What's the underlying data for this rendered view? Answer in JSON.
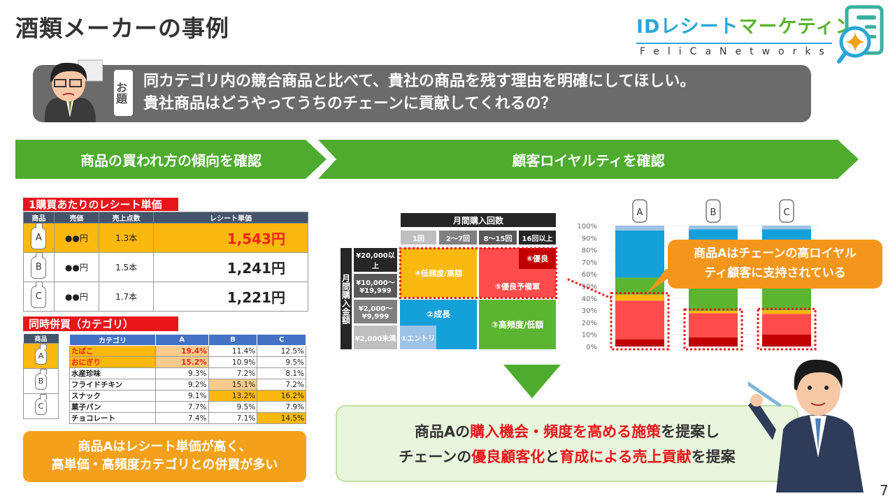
{
  "title": "酒類メーカーの事例",
  "logo": {
    "jp_blue": "IDレシート",
    "jp_green": "マーケティング",
    "en": "FeliCaNetworks"
  },
  "odai": {
    "label": "お題",
    "lines": [
      "同カテゴリ内の競合商品と比べて、貴社の商品を残す理由を明確にしてほしい。",
      "貴社商品はどうやってうちのチェーンに貢献してくれるの？"
    ]
  },
  "arrows": {
    "left": "商品の買われ方の傾向を確認",
    "right": "顧客ロイヤルティを確認"
  },
  "receipt": {
    "label": "1購買あたりのレシート単価",
    "headers": [
      "商品",
      "売価",
      "売上点数",
      "レシート単価"
    ],
    "rows": [
      {
        "product": "A",
        "price": "●●円",
        "units": "1.3本",
        "receipt": "1,543円"
      },
      {
        "product": "B",
        "price": "●●円",
        "units": "1.5本",
        "receipt": "1,241円"
      },
      {
        "product": "C",
        "price": "●●円",
        "units": "1.7本",
        "receipt": "1,221円"
      }
    ]
  },
  "basket": {
    "label": "同時併買（カテゴリ）",
    "product_header": "商品",
    "products": [
      "A",
      "B",
      "C"
    ],
    "headers": [
      "カテゴリ",
      "A",
      "B",
      "C"
    ],
    "rows": [
      [
        "たばこ",
        "19.4%",
        "11.4%",
        "12.5%"
      ],
      [
        "おにぎり",
        "15.2%",
        "10.9%",
        "9.5%"
      ],
      [
        "水産珍味",
        "9.3%",
        "7.2%",
        "8.1%"
      ],
      [
        "フライドチキン",
        "9.2%",
        "15.1%",
        "7.2%"
      ],
      [
        "スナック",
        "9.1%",
        "13.2%",
        "16.2%"
      ],
      [
        "菓子パン",
        "7.7%",
        "9.5%",
        "7.9%"
      ],
      [
        "チョコレート",
        "7.4%",
        "7.1%",
        "14.5%"
      ]
    ]
  },
  "summary_left": [
    "商品Aはレシート単価が高く、",
    "高単価・高頻度カテゴリとの併買が多い"
  ],
  "matrix": {
    "col_title": "月間購入回数",
    "cols": [
      "1回",
      "2〜7回",
      "8〜15回",
      "16回以上"
    ],
    "row_title": "月間購入金額",
    "rows": [
      "¥20,000以上",
      "¥10,000〜¥19,999",
      "¥2,000〜¥9,999",
      "¥2,000未満"
    ],
    "segments": {
      "s1": "①エントリ",
      "s2": "②成長",
      "s3": "③高頻度/低額",
      "s4": "④低頻度/高額",
      "s5": "⑤優良予備軍",
      "s6": "⑥優良"
    }
  },
  "chart_data": {
    "type": "bar",
    "stacked": true,
    "categories": [
      "A",
      "B",
      "C"
    ],
    "ylim": [
      0,
      100
    ],
    "yticks": [
      "0%",
      "10%",
      "20%",
      "30%",
      "40%",
      "50%",
      "60%",
      "70%",
      "80%",
      "90%",
      "100%"
    ],
    "grid": true,
    "series": [
      {
        "segment": "⑥",
        "color": "#c00000",
        "values": [
          6,
          7.5,
          10
        ]
      },
      {
        "segment": "⑤",
        "color": "#ff4b4b",
        "values": [
          32,
          20,
          17
        ]
      },
      {
        "segment": "④",
        "color": "#fbb80f",
        "values": [
          5,
          2,
          3
        ]
      },
      {
        "segment": "③",
        "color": "#5cb531",
        "values": [
          14,
          30,
          30
        ]
      },
      {
        "segment": "②",
        "color": "#14a0d8",
        "values": [
          39,
          37.5,
          37
        ]
      },
      {
        "segment": "①",
        "color": "#9dc3e6",
        "values": [
          4,
          3,
          3
        ]
      }
    ]
  },
  "callout": [
    "商品Aはチェーンの高ロイヤル",
    "ティ顧客に支持されている"
  ],
  "conclusion": {
    "l1a": "商品Aの",
    "l1b": "購入機会・頻度を高める施策",
    "l1c": "を提案し",
    "l2a": "チェーンの",
    "l2b": "優良顧客化",
    "l2c": "と",
    "l2d": "育成による売上貢献",
    "l2e": "を提案"
  },
  "page_number": "7"
}
